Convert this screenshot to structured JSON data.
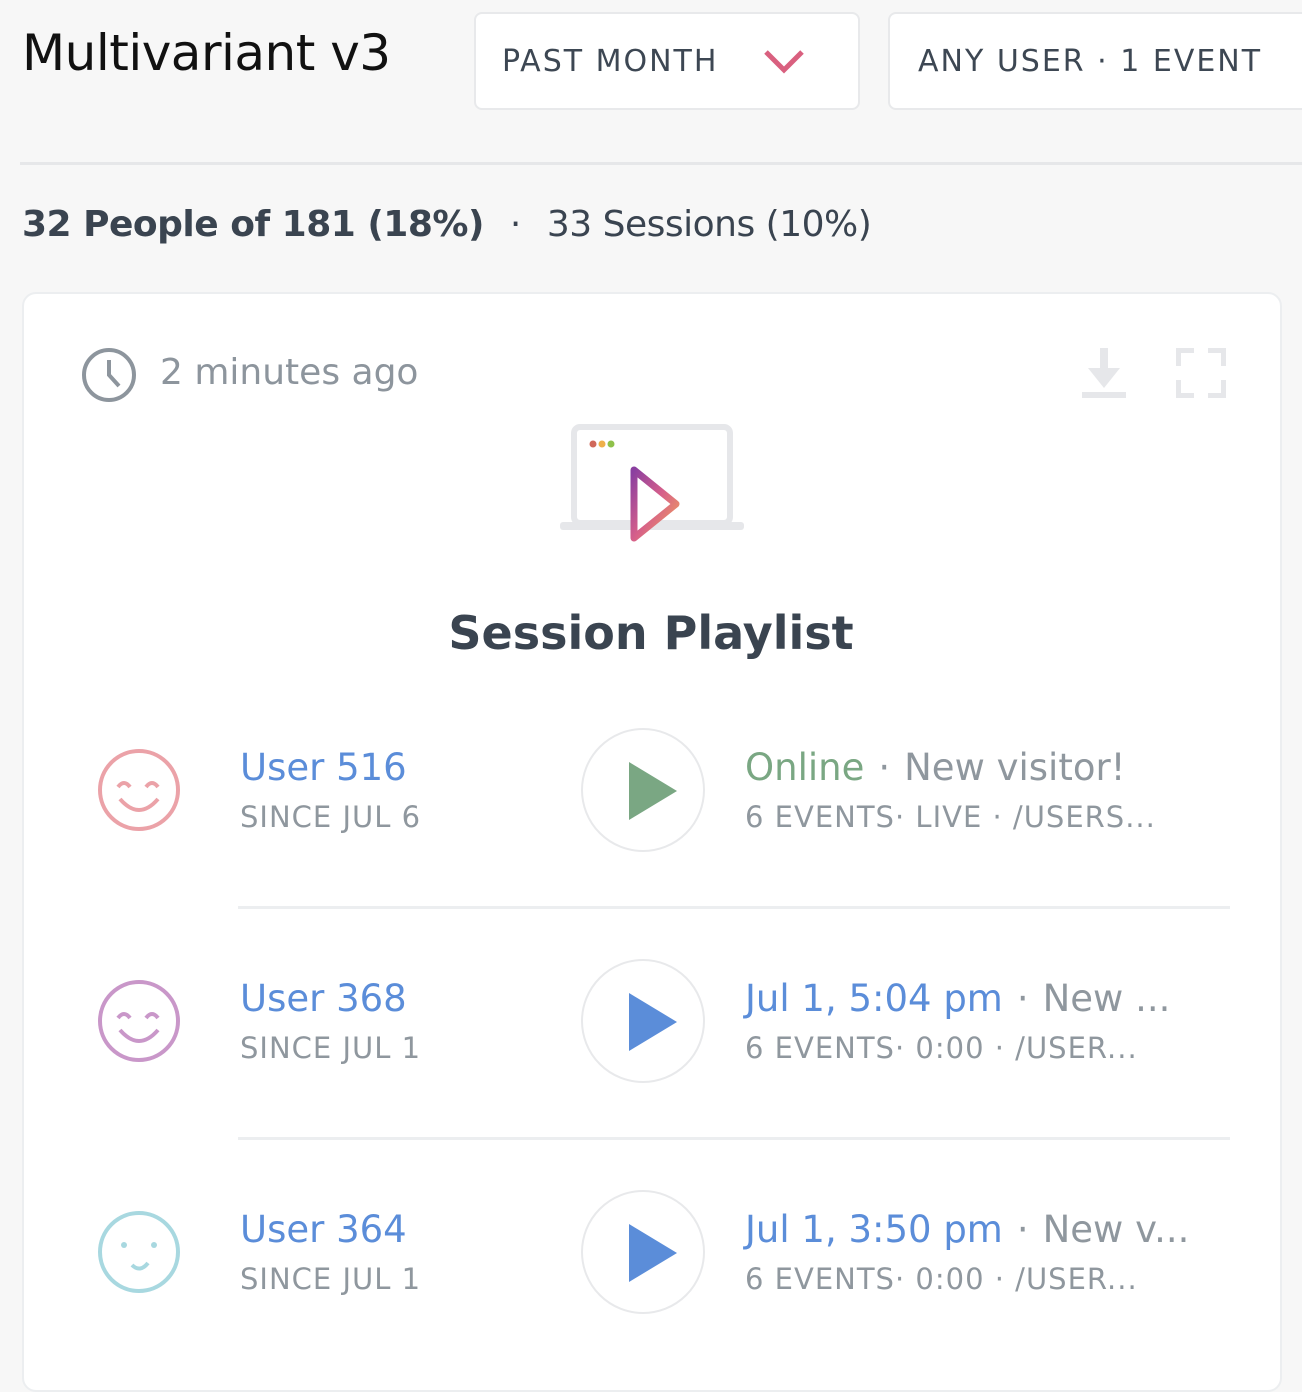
{
  "header": {
    "title": "Multivariant v3",
    "date_filter": "PAST MONTH",
    "user_filter": "ANY USER · 1 EVENT"
  },
  "stats": {
    "people": "32 People of 181 (18%)",
    "separator": "·",
    "sessions": "33 Sessions (10%)"
  },
  "card": {
    "updated": "2 minutes ago",
    "title": "Session Playlist",
    "icons": [
      "clock-icon",
      "download-icon",
      "fullscreen-icon",
      "session-playlist-illustration"
    ]
  },
  "colors": {
    "accent_blue": "#5b8dd9",
    "online_green": "#7aa783",
    "dropdown_chevron": "#d9607f"
  },
  "sessions": [
    {
      "name": "User 516",
      "since": "SINCE JUL 6",
      "status": "Online",
      "desc": "New visitor!",
      "details": "6 EVENTS· LIVE · /USERS...",
      "avatar_color": "#eba2a8",
      "play_color": "#7aa783"
    },
    {
      "name": "User 368",
      "since": "SINCE JUL 1",
      "status": "Jul 1, 5:04 pm",
      "desc": "New ...",
      "details": "6 EVENTS· 0:00 · /USER...",
      "avatar_color": "#c997c9",
      "play_color": "#5b8dd9"
    },
    {
      "name": "User 364",
      "since": "SINCE JUL 1",
      "status": "Jul 1, 3:50 pm",
      "desc": "New v...",
      "details": "6 EVENTS· 0:00 · /USER...",
      "avatar_color": "#a8d8e0",
      "play_color": "#5b8dd9"
    }
  ]
}
